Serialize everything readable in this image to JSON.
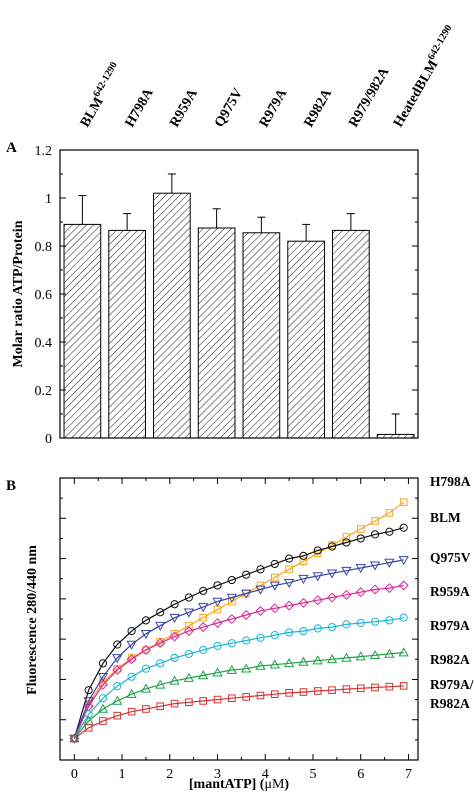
{
  "chart_data": [
    {
      "panel": "A",
      "type": "bar",
      "categories": [
        "BLM",
        "H798A",
        "R959A",
        "Q975V",
        "R979A",
        "R982A",
        "R979/982A",
        "HeatedBLM"
      ],
      "category_superscripts": [
        "642-1290",
        "",
        "",
        "",
        "",
        "",
        "",
        "642-1290"
      ],
      "values": [
        0.89,
        0.865,
        1.02,
        0.875,
        0.855,
        0.82,
        0.865,
        0.015
      ],
      "errors": [
        0.12,
        0.07,
        0.08,
        0.08,
        0.065,
        0.07,
        0.07,
        0.085
      ],
      "ylabel": "Molar ratio ATP/Protein",
      "ylim": [
        0,
        1.2
      ],
      "yticks": [
        "0",
        "0.2",
        "0.4",
        "0.6",
        "0.8",
        "1",
        "1.2"
      ],
      "fill": "diagonal-hatch",
      "grid": false
    },
    {
      "panel": "B",
      "type": "scatter",
      "xlabel_prefix": "[mantATP] (",
      "xlabel_unit": "μM",
      "xlabel_suffix": ")",
      "ylabel": "Fluorescence 280/440 nm",
      "xlim": [
        -0.3,
        7.2
      ],
      "xticks": [
        "0",
        "1",
        "2",
        "3",
        "4",
        "5",
        "6",
        "7"
      ],
      "y_tick_labels": false,
      "grid": false,
      "x": [
        0,
        0.3,
        0.6,
        0.9,
        1.2,
        1.5,
        1.8,
        2.1,
        2.4,
        2.7,
        3.0,
        3.3,
        3.6,
        3.9,
        4.2,
        4.5,
        4.8,
        5.1,
        5.4,
        5.7,
        6.0,
        6.3,
        6.6,
        6.9
      ],
      "series": [
        {
          "name": "H798A",
          "color": "#f5a623",
          "marker": "square",
          "values": [
            0.03,
            0.16,
            0.24,
            0.29,
            0.33,
            0.36,
            0.39,
            0.42,
            0.45,
            0.48,
            0.51,
            0.54,
            0.57,
            0.6,
            0.63,
            0.66,
            0.69,
            0.72,
            0.75,
            0.78,
            0.81,
            0.84,
            0.87,
            0.91
          ]
        },
        {
          "name": "BLM",
          "color": "#111111",
          "marker": "circle",
          "values": [
            0.03,
            0.21,
            0.31,
            0.38,
            0.43,
            0.47,
            0.5,
            0.53,
            0.555,
            0.58,
            0.6,
            0.62,
            0.64,
            0.66,
            0.68,
            0.7,
            0.71,
            0.73,
            0.745,
            0.76,
            0.775,
            0.79,
            0.8,
            0.815
          ]
        },
        {
          "name": "Q975V",
          "color": "#3a46a6",
          "marker": "triangle-down",
          "values": [
            0.03,
            0.17,
            0.26,
            0.33,
            0.38,
            0.42,
            0.45,
            0.48,
            0.5,
            0.52,
            0.54,
            0.555,
            0.57,
            0.585,
            0.6,
            0.61,
            0.625,
            0.635,
            0.645,
            0.655,
            0.665,
            0.675,
            0.685,
            0.695
          ]
        },
        {
          "name": "R959A",
          "color": "#d82b9b",
          "marker": "diamond",
          "values": [
            0.03,
            0.15,
            0.23,
            0.285,
            0.325,
            0.36,
            0.385,
            0.41,
            0.43,
            0.445,
            0.46,
            0.475,
            0.49,
            0.505,
            0.515,
            0.525,
            0.535,
            0.545,
            0.555,
            0.565,
            0.575,
            0.585,
            0.59,
            0.6
          ]
        },
        {
          "name": "R979A",
          "color": "#19b6d6",
          "marker": "circle",
          "values": [
            0.03,
            0.12,
            0.18,
            0.225,
            0.26,
            0.29,
            0.31,
            0.33,
            0.345,
            0.36,
            0.375,
            0.385,
            0.395,
            0.405,
            0.415,
            0.425,
            0.43,
            0.44,
            0.445,
            0.455,
            0.46,
            0.465,
            0.47,
            0.48
          ]
        },
        {
          "name": "R982A",
          "color": "#1fa14a",
          "marker": "triangle-up",
          "values": [
            0.03,
            0.095,
            0.14,
            0.17,
            0.195,
            0.215,
            0.23,
            0.245,
            0.255,
            0.265,
            0.275,
            0.285,
            0.29,
            0.3,
            0.305,
            0.31,
            0.315,
            0.32,
            0.325,
            0.33,
            0.335,
            0.34,
            0.345,
            0.35
          ]
        },
        {
          "name": "R979A/982A",
          "color": "#d63333",
          "marker": "square",
          "values": [
            0.03,
            0.07,
            0.095,
            0.115,
            0.13,
            0.14,
            0.15,
            0.16,
            0.165,
            0.17,
            0.175,
            0.18,
            0.185,
            0.19,
            0.195,
            0.2,
            0.203,
            0.207,
            0.21,
            0.214,
            0.217,
            0.22,
            0.223,
            0.226
          ]
        }
      ],
      "right_labels": [
        "H798A",
        "BLM",
        "Q975V",
        "R959A",
        "R979A",
        "R982A",
        "R979A/",
        "R982A"
      ]
    }
  ]
}
